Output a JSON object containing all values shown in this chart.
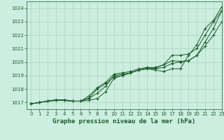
{
  "title": "Graphe pression niveau de la mer (hPa)",
  "xlim": [
    -0.5,
    23
  ],
  "ylim": [
    1016.5,
    1024.5
  ],
  "yticks": [
    1017,
    1018,
    1019,
    1020,
    1021,
    1022,
    1023,
    1024
  ],
  "xticks": [
    0,
    1,
    2,
    3,
    4,
    5,
    6,
    7,
    8,
    9,
    10,
    11,
    12,
    13,
    14,
    15,
    16,
    17,
    18,
    19,
    20,
    21,
    22,
    23
  ],
  "background_color": "#cceee0",
  "grid_color": "#aad4be",
  "line_color": "#1a5c2a",
  "series": [
    [
      1016.9,
      1017.0,
      1017.1,
      1017.15,
      1017.15,
      1017.1,
      1017.1,
      1017.15,
      1017.3,
      1017.8,
      1018.8,
      1019.0,
      1019.2,
      1019.4,
      1019.5,
      1019.4,
      1019.3,
      1019.5,
      1019.5,
      1020.5,
      1021.3,
      1022.5,
      1023.1,
      1024.1
    ],
    [
      1016.9,
      1017.0,
      1017.1,
      1017.15,
      1017.15,
      1017.1,
      1017.1,
      1017.3,
      1017.7,
      1018.2,
      1019.0,
      1019.1,
      1019.2,
      1019.4,
      1019.5,
      1019.5,
      1019.6,
      1019.9,
      1020.0,
      1020.1,
      1020.5,
      1021.2,
      1022.0,
      1023.0
    ],
    [
      1016.9,
      1017.0,
      1017.1,
      1017.2,
      1017.2,
      1017.1,
      1017.1,
      1017.5,
      1018.1,
      1018.5,
      1019.1,
      1019.2,
      1019.3,
      1019.5,
      1019.6,
      1019.6,
      1019.8,
      1020.5,
      1020.5,
      1020.6,
      1021.0,
      1022.0,
      1023.0,
      1023.8
    ],
    [
      1016.9,
      1017.0,
      1017.1,
      1017.2,
      1017.2,
      1017.1,
      1017.1,
      1017.35,
      1018.0,
      1018.4,
      1018.9,
      1019.0,
      1019.2,
      1019.4,
      1019.55,
      1019.55,
      1019.8,
      1020.1,
      1020.05,
      1020.1,
      1020.5,
      1021.5,
      1022.5,
      1023.8
    ]
  ]
}
